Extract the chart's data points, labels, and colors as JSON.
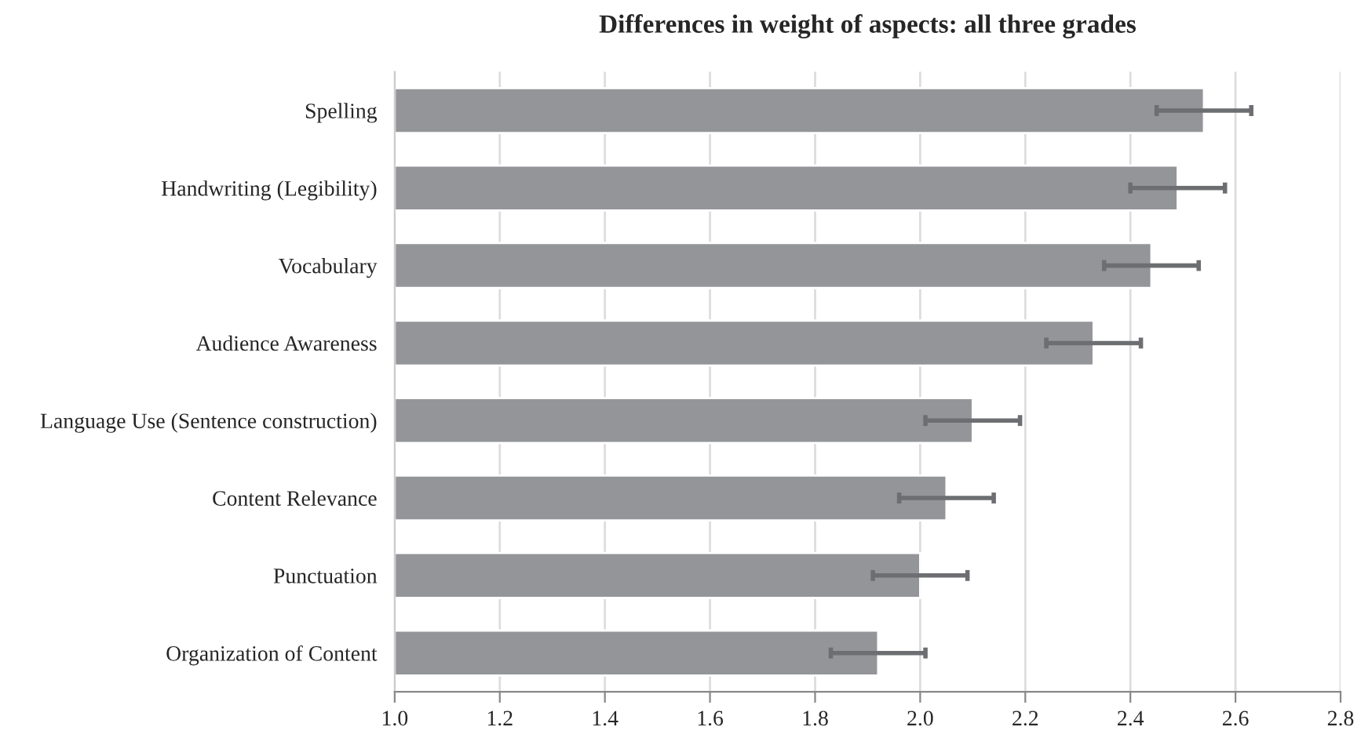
{
  "chart_data": {
    "type": "bar",
    "orientation": "horizontal",
    "title": "Differences in weight of aspects: all three grades",
    "categories": [
      "Spelling",
      "Handwriting (Legibility)",
      "Vocabulary",
      "Audience Awareness",
      "Language Use (Sentence construction)",
      "Content Relevance",
      "Punctuation",
      "Organization of Content"
    ],
    "values": [
      2.54,
      2.49,
      2.44,
      2.33,
      2.1,
      2.05,
      2.0,
      1.92
    ],
    "errors": [
      0.09,
      0.09,
      0.09,
      0.09,
      0.09,
      0.09,
      0.09,
      0.09
    ],
    "color": "#939598",
    "xlim": [
      1.0,
      2.8
    ],
    "xticks": [
      {
        "value": 1.0,
        "label": "1.0"
      },
      1.2,
      1.4,
      1.6,
      1.8,
      {
        "value": 2.0,
        "label": "2.0"
      },
      2.2,
      2.4,
      2.6,
      2.8
    ],
    "grid": "x"
  }
}
